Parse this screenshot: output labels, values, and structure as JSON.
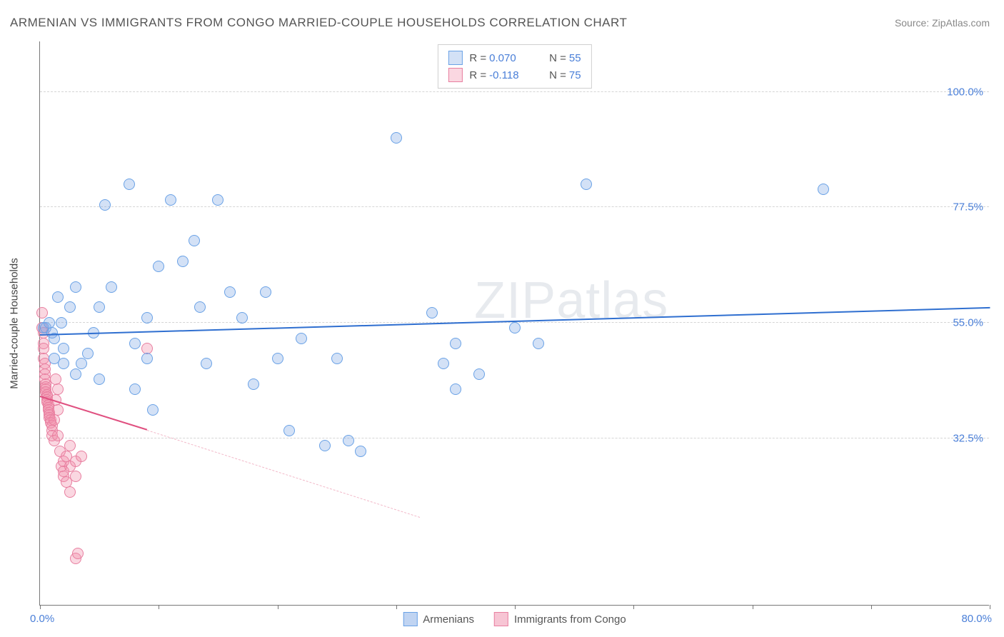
{
  "title": "ARMENIAN VS IMMIGRANTS FROM CONGO MARRIED-COUPLE HOUSEHOLDS CORRELATION CHART",
  "source": "Source: ZipAtlas.com",
  "watermark_a": "ZIP",
  "watermark_b": "atlas",
  "yaxis_title": "Married-couple Households",
  "chart": {
    "type": "scatter",
    "xlim": [
      0,
      80
    ],
    "ylim": [
      0,
      110
    ],
    "x_display_min": "0.0%",
    "x_display_max": "80.0%",
    "ytick_values": [
      32.5,
      55.0,
      77.5,
      100.0
    ],
    "ytick_labels": [
      "32.5%",
      "55.0%",
      "77.5%",
      "100.0%"
    ],
    "xtick_values": [
      0,
      10,
      20,
      30,
      40,
      50,
      60,
      70,
      80
    ],
    "background_color": "#ffffff",
    "grid_color": "#d5d5d5",
    "axis_color": "#777777",
    "text_color": "#555555",
    "value_color": "#4a7fd8",
    "marker_radius": 8,
    "marker_border_width": 1.5,
    "marker_fill_opacity": 0.35
  },
  "series": [
    {
      "name": "Armenians",
      "color_border": "#6aa2e6",
      "color_fill": "rgba(130,170,230,0.35)",
      "r_value": "0.070",
      "n_value": "55",
      "trend": {
        "x1": 0,
        "y1": 52.5,
        "x2": 80,
        "y2": 57.8,
        "color": "#2f6fd0",
        "width": 2.5,
        "dash": "solid"
      },
      "points": [
        [
          0.3,
          54
        ],
        [
          0.5,
          54
        ],
        [
          0.8,
          55
        ],
        [
          1.0,
          53
        ],
        [
          1.2,
          52
        ],
        [
          1.2,
          48
        ],
        [
          1.5,
          60
        ],
        [
          1.8,
          55
        ],
        [
          2.0,
          50
        ],
        [
          2.0,
          47
        ],
        [
          2.5,
          58
        ],
        [
          3.0,
          62
        ],
        [
          3.0,
          45
        ],
        [
          3.5,
          47
        ],
        [
          4.0,
          49
        ],
        [
          4.5,
          53
        ],
        [
          5.0,
          58
        ],
        [
          5.0,
          44
        ],
        [
          5.5,
          78
        ],
        [
          6.0,
          62
        ],
        [
          7.5,
          82
        ],
        [
          8.0,
          51
        ],
        [
          8.0,
          42
        ],
        [
          9.0,
          48
        ],
        [
          9.0,
          56
        ],
        [
          9.5,
          38
        ],
        [
          10.0,
          66
        ],
        [
          11.0,
          79
        ],
        [
          12.0,
          67
        ],
        [
          13.0,
          71
        ],
        [
          13.5,
          58
        ],
        [
          14.0,
          47
        ],
        [
          15.0,
          79
        ],
        [
          16.0,
          61
        ],
        [
          17.0,
          56
        ],
        [
          18.0,
          43
        ],
        [
          19.0,
          61
        ],
        [
          20.0,
          48
        ],
        [
          21.0,
          34
        ],
        [
          22.0,
          52
        ],
        [
          24.0,
          31
        ],
        [
          25.0,
          48
        ],
        [
          26.0,
          32
        ],
        [
          27.0,
          30
        ],
        [
          30.0,
          91
        ],
        [
          33.0,
          57
        ],
        [
          34.0,
          47
        ],
        [
          35.0,
          51
        ],
        [
          35.0,
          42
        ],
        [
          37.0,
          45
        ],
        [
          40.0,
          54
        ],
        [
          42.0,
          51
        ],
        [
          46.0,
          82
        ],
        [
          66.0,
          81
        ]
      ]
    },
    {
      "name": "Immigants from Congo",
      "label": "Immigrants from Congo",
      "color_border": "#e87fa0",
      "color_fill": "rgba(240,140,170,0.35)",
      "r_value": "-0.118",
      "n_value": "75",
      "trend_solid": {
        "x1": 0,
        "y1": 40.5,
        "x2": 9,
        "y2": 34,
        "color": "#e05080",
        "width": 2.5
      },
      "trend_dash": {
        "x1": 9,
        "y1": 34,
        "x2": 32,
        "y2": 17,
        "color": "#f2b8c8",
        "width": 1.5
      },
      "points": [
        [
          0.2,
          57
        ],
        [
          0.2,
          54
        ],
        [
          0.3,
          53
        ],
        [
          0.3,
          51
        ],
        [
          0.3,
          50
        ],
        [
          0.3,
          48
        ],
        [
          0.4,
          47
        ],
        [
          0.4,
          46
        ],
        [
          0.4,
          45
        ],
        [
          0.4,
          44
        ],
        [
          0.5,
          43
        ],
        [
          0.5,
          42.5
        ],
        [
          0.5,
          42
        ],
        [
          0.5,
          41.5
        ],
        [
          0.6,
          41
        ],
        [
          0.6,
          40.5
        ],
        [
          0.6,
          40
        ],
        [
          0.6,
          39.5
        ],
        [
          0.7,
          39
        ],
        [
          0.7,
          38.5
        ],
        [
          0.7,
          38
        ],
        [
          0.8,
          37.5
        ],
        [
          0.8,
          37
        ],
        [
          0.8,
          36.5
        ],
        [
          0.9,
          36
        ],
        [
          0.9,
          35.5
        ],
        [
          1.0,
          35
        ],
        [
          1.0,
          34
        ],
        [
          1.0,
          33
        ],
        [
          1.2,
          36
        ],
        [
          1.2,
          32
        ],
        [
          1.3,
          44
        ],
        [
          1.3,
          40
        ],
        [
          1.5,
          42
        ],
        [
          1.5,
          38
        ],
        [
          1.5,
          33
        ],
        [
          1.7,
          30
        ],
        [
          1.8,
          27
        ],
        [
          2.0,
          28
        ],
        [
          2.0,
          26
        ],
        [
          2.0,
          25
        ],
        [
          2.2,
          29
        ],
        [
          2.2,
          24
        ],
        [
          2.5,
          27
        ],
        [
          2.5,
          31
        ],
        [
          2.5,
          22
        ],
        [
          3.0,
          28
        ],
        [
          3.0,
          25
        ],
        [
          3.0,
          9
        ],
        [
          3.2,
          10
        ],
        [
          3.5,
          29
        ],
        [
          9.0,
          50
        ]
      ]
    }
  ],
  "legend_bottom": [
    {
      "label": "Armenians",
      "fill": "rgba(130,170,230,0.5)",
      "border": "#6aa2e6"
    },
    {
      "label": "Immigrants from Congo",
      "fill": "rgba(240,140,170,0.5)",
      "border": "#e87fa0"
    }
  ]
}
